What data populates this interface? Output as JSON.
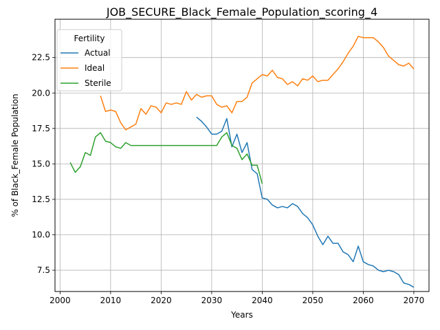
{
  "chart_data": {
    "type": "line",
    "title": "JOB_SECURE_Black_Female_Population_scoring_4",
    "xlabel": "Years",
    "ylabel": "% of Black_Female Population",
    "xlim": [
      1999,
      2073
    ],
    "ylim": [
      6.0,
      25.2
    ],
    "xticks": [
      2000,
      2010,
      2020,
      2030,
      2040,
      2050,
      2060,
      2070
    ],
    "yticks": [
      7.5,
      10.0,
      12.5,
      15.0,
      17.5,
      20.0,
      22.5
    ],
    "ytick_labels": [
      "7.5",
      "10.0",
      "12.5",
      "15.0",
      "17.5",
      "20.0",
      "22.5"
    ],
    "grid": true,
    "legend": {
      "title": "Fertility",
      "position": "top-left"
    },
    "series": [
      {
        "name": "Actual",
        "color": "#1f77b4",
        "x": [
          2027,
          2028,
          2029,
          2030,
          2031,
          2032,
          2033,
          2034,
          2035,
          2036,
          2037,
          2038,
          2039,
          2040,
          2041,
          2042,
          2043,
          2044,
          2045,
          2046,
          2047,
          2048,
          2049,
          2050,
          2051,
          2052,
          2053,
          2054,
          2055,
          2056,
          2057,
          2058,
          2059,
          2060,
          2061,
          2062,
          2063,
          2064,
          2065,
          2066,
          2067,
          2068,
          2069,
          2070
        ],
        "y": [
          18.3,
          18.0,
          17.6,
          17.1,
          17.1,
          17.3,
          18.2,
          16.2,
          17.1,
          15.8,
          16.5,
          14.6,
          14.3,
          12.6,
          12.5,
          12.1,
          11.9,
          12.0,
          11.9,
          12.2,
          12.0,
          11.5,
          11.2,
          10.7,
          9.9,
          9.3,
          9.9,
          9.4,
          9.4,
          8.8,
          8.6,
          8.1,
          9.2,
          8.1,
          7.9,
          7.8,
          7.5,
          7.4,
          7.5,
          7.4,
          7.2,
          6.6,
          6.5,
          6.3
        ]
      },
      {
        "name": "Ideal",
        "color": "#ff7f0e",
        "x": [
          2008,
          2009,
          2010,
          2011,
          2012,
          2013,
          2014,
          2015,
          2016,
          2017,
          2018,
          2019,
          2020,
          2021,
          2022,
          2023,
          2024,
          2025,
          2026,
          2027,
          2028,
          2029,
          2030,
          2031,
          2032,
          2033,
          2034,
          2035,
          2036,
          2037,
          2038,
          2039,
          2040,
          2041,
          2042,
          2043,
          2044,
          2045,
          2046,
          2047,
          2048,
          2049,
          2050,
          2051,
          2052,
          2053,
          2054,
          2055,
          2056,
          2057,
          2058,
          2059,
          2060,
          2061,
          2062,
          2063,
          2064,
          2065,
          2066,
          2067,
          2068,
          2069,
          2070
        ],
        "y": [
          19.8,
          18.7,
          18.8,
          18.7,
          17.9,
          17.4,
          17.6,
          17.8,
          18.9,
          18.5,
          19.1,
          19.0,
          18.6,
          19.3,
          19.2,
          19.3,
          19.2,
          20.1,
          19.5,
          19.9,
          19.7,
          19.8,
          19.8,
          19.2,
          19.0,
          19.1,
          18.6,
          19.4,
          19.4,
          19.7,
          20.7,
          21.0,
          21.3,
          21.2,
          21.6,
          21.1,
          21.0,
          20.6,
          20.8,
          20.5,
          21.0,
          20.9,
          21.2,
          20.8,
          20.9,
          20.9,
          21.3,
          21.7,
          22.2,
          22.8,
          23.3,
          24.0,
          23.9,
          23.9,
          23.9,
          23.6,
          23.2,
          22.6,
          22.3,
          22.0,
          21.9,
          22.1,
          21.7
        ]
      },
      {
        "name": "Sterile",
        "color": "#2ca02c",
        "x": [
          2002,
          2003,
          2004,
          2005,
          2006,
          2007,
          2008,
          2009,
          2010,
          2011,
          2012,
          2013,
          2014,
          2015,
          2016,
          2017,
          2018,
          2019,
          2020,
          2021,
          2022,
          2023,
          2024,
          2025,
          2026,
          2027,
          2028,
          2029,
          2030,
          2031,
          2032,
          2033,
          2034,
          2035,
          2036,
          2037,
          2038,
          2039,
          2040
        ],
        "y": [
          15.1,
          14.4,
          14.8,
          15.8,
          15.6,
          16.9,
          17.2,
          16.6,
          16.5,
          16.2,
          16.1,
          16.5,
          16.3,
          16.3,
          16.3,
          16.3,
          16.3,
          16.3,
          16.3,
          16.3,
          16.3,
          16.3,
          16.3,
          16.3,
          16.3,
          16.3,
          16.3,
          16.3,
          16.3,
          16.3,
          16.9,
          17.2,
          16.3,
          16.1,
          15.3,
          15.7,
          14.9,
          14.9,
          13.6
        ]
      }
    ]
  }
}
